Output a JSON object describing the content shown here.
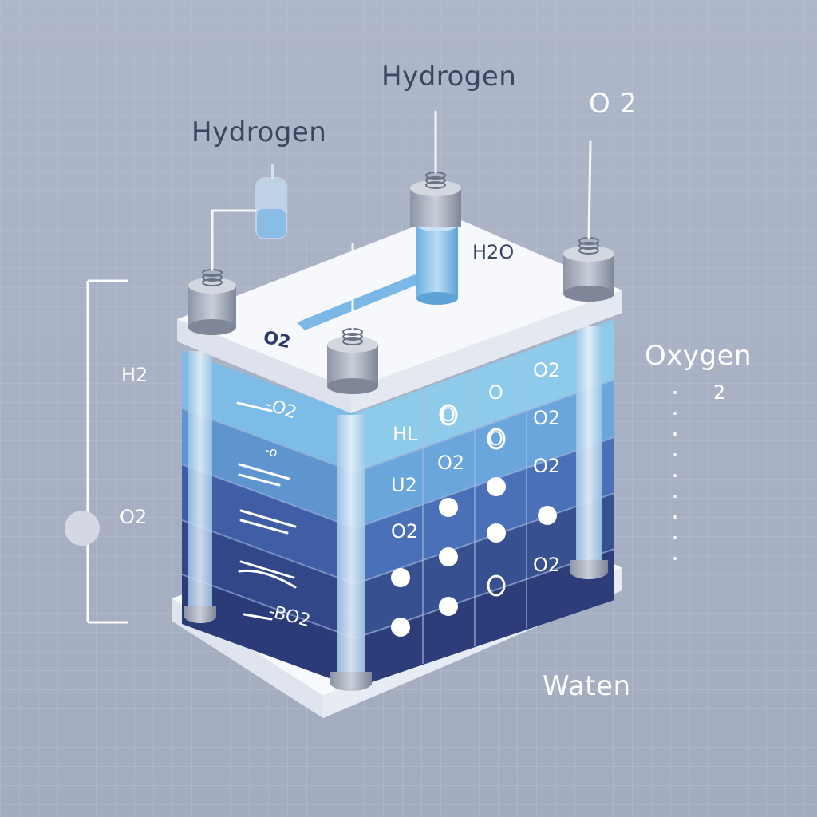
{
  "labels": {
    "hydrogen_top": "Hydrogen",
    "hydrogen_left": "Hydrogen",
    "o2_top_right": "O 2",
    "h2o": "H2O",
    "o2_lid": "O2",
    "h2_side": "H2",
    "o2_side": "O2",
    "oxygen": "Oxygen",
    "oxygen_sub": "2",
    "water": "Waten"
  },
  "panel_text": {
    "front_a": "-O2",
    "front_b": "-o",
    "front_c": "-BO2"
  },
  "cell_marks": {
    "r1": [
      "O",
      "O",
      "O2"
    ],
    "r2": [
      "HL",
      "O",
      "O2"
    ],
    "r3": [
      "O2",
      "O",
      "O2"
    ],
    "r4": [
      "U2",
      "",
      ""
    ],
    "r5": [
      "O2",
      "",
      ""
    ],
    "r6": [
      "",
      "",
      "O2"
    ]
  },
  "colors": {
    "background": "#aab2c6",
    "grid": "#b5bdd0",
    "light_blue": "#8ec5ea",
    "mid_blue": "#5b88c6",
    "navy": "#2d3a75",
    "plate": "#f3f5fa",
    "terminal": "#a9b0bf"
  }
}
